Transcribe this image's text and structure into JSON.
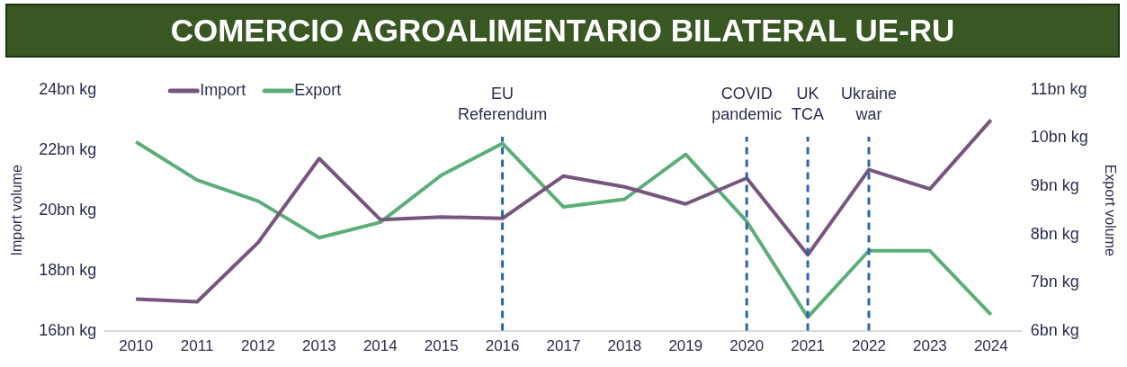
{
  "chart_data": {
    "type": "line",
    "title": "COMERCIO AGROALIMENTARIO BILATERAL UE-RU",
    "ylabel": "Import volume",
    "y2label": "Export volume",
    "categories": [
      "2010",
      "2011",
      "2012",
      "2013",
      "2014",
      "2015",
      "2016",
      "2017",
      "2018",
      "2019",
      "2020",
      "2021",
      "2022",
      "2023",
      "2024"
    ],
    "series": [
      {
        "name": "Import",
        "color": "#76567e",
        "values": [
          17.05,
          16.96,
          18.93,
          21.72,
          19.69,
          19.78,
          19.73,
          21.14,
          20.78,
          20.21,
          21.07,
          18.52,
          21.35,
          20.71,
          23.0
        ]
      },
      {
        "name": "Export",
        "color": "#5cae78",
        "axis": "y2",
        "values": [
          9.92,
          9.13,
          8.69,
          7.93,
          8.25,
          9.23,
          9.89,
          8.57,
          8.73,
          9.66,
          8.27,
          6.28,
          7.66,
          7.66,
          6.33
        ]
      }
    ],
    "ylim": [
      16,
      24
    ],
    "yticks": [
      {
        "value": 16,
        "label": "16bn kg"
      },
      {
        "value": 18,
        "label": "18bn kg"
      },
      {
        "value": 20,
        "label": "20bn kg"
      },
      {
        "value": 22,
        "label": "22bn kg"
      },
      {
        "value": 24,
        "label": "24bn kg"
      }
    ],
    "y2lim": [
      6,
      11
    ],
    "y2ticks": [
      {
        "value": 6,
        "label": "6bn kg"
      },
      {
        "value": 7,
        "label": "7bn kg"
      },
      {
        "value": 8,
        "label": "8bn kg"
      },
      {
        "value": 9,
        "label": "9bn kg"
      },
      {
        "value": 10,
        "label": "10bn kg"
      },
      {
        "value": 11,
        "label": "11bn kg"
      }
    ],
    "ref_lines": [
      {
        "axis": "x",
        "value": "2016",
        "label": "EU Referendum",
        "color": "#2f63ad",
        "line_style": "dashed"
      },
      {
        "axis": "x",
        "value": "2020",
        "label": "COVID pandemic",
        "color": "#2f63ad",
        "line_style": "dashed"
      },
      {
        "axis": "x",
        "value": "2021",
        "label": "UK TCA",
        "color": "#2f63ad",
        "line_style": "dashed"
      },
      {
        "axis": "x",
        "value": "2022",
        "label": "Ukraine war",
        "color": "#2f63ad",
        "line_style": "dashed"
      }
    ],
    "grid": false,
    "legend": "top left",
    "marker": "none",
    "line_style": "solid"
  }
}
